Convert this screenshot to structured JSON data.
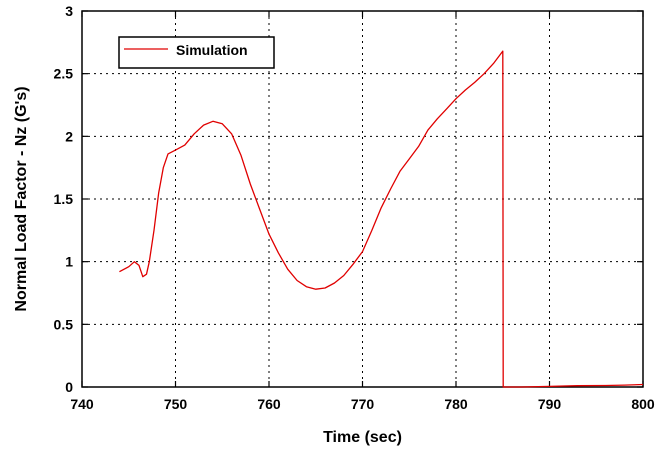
{
  "chart_data": {
    "type": "line",
    "xlabel": "Time (sec)",
    "ylabel": "Normal Load Factor - Nz (G's)",
    "xlim": [
      740,
      800
    ],
    "ylim": [
      0,
      3
    ],
    "xticks": [
      740,
      750,
      760,
      770,
      780,
      790,
      800
    ],
    "yticks": [
      0,
      0.5,
      1,
      1.5,
      2,
      2.5,
      3
    ],
    "xtick_labels": [
      "740",
      "750",
      "760",
      "770",
      "780",
      "790",
      "800"
    ],
    "ytick_labels": [
      "0",
      "0.5",
      "1",
      "1.5",
      "2",
      "2.5",
      "3"
    ],
    "grid": true,
    "legend": {
      "position": "top-left"
    },
    "series": [
      {
        "name": "Simulation",
        "color": "#e00000",
        "points": [
          [
            744.0,
            0.92
          ],
          [
            745.0,
            0.96
          ],
          [
            745.6,
            1.0
          ],
          [
            746.1,
            0.97
          ],
          [
            746.5,
            0.88
          ],
          [
            746.9,
            0.9
          ],
          [
            747.2,
            1.0
          ],
          [
            747.7,
            1.25
          ],
          [
            748.2,
            1.55
          ],
          [
            748.7,
            1.75
          ],
          [
            749.2,
            1.86
          ],
          [
            750.0,
            1.89
          ],
          [
            751.0,
            1.93
          ],
          [
            752.0,
            2.02
          ],
          [
            753.0,
            2.09
          ],
          [
            754.0,
            2.12
          ],
          [
            755.0,
            2.1
          ],
          [
            756.0,
            2.02
          ],
          [
            757.0,
            1.85
          ],
          [
            758.0,
            1.62
          ],
          [
            759.0,
            1.42
          ],
          [
            760.0,
            1.22
          ],
          [
            761.0,
            1.07
          ],
          [
            762.0,
            0.94
          ],
          [
            763.0,
            0.85
          ],
          [
            764.0,
            0.8
          ],
          [
            765.0,
            0.78
          ],
          [
            766.0,
            0.79
          ],
          [
            767.0,
            0.83
          ],
          [
            768.0,
            0.89
          ],
          [
            769.0,
            0.98
          ],
          [
            770.0,
            1.08
          ],
          [
            771.0,
            1.25
          ],
          [
            772.0,
            1.43
          ],
          [
            773.0,
            1.58
          ],
          [
            774.0,
            1.72
          ],
          [
            775.0,
            1.82
          ],
          [
            776.0,
            1.92
          ],
          [
            777.0,
            2.05
          ],
          [
            778.0,
            2.14
          ],
          [
            779.0,
            2.22
          ],
          [
            780.0,
            2.3
          ],
          [
            781.0,
            2.37
          ],
          [
            782.0,
            2.43
          ],
          [
            783.0,
            2.5
          ],
          [
            784.0,
            2.58
          ],
          [
            785.0,
            2.68
          ],
          [
            785.05,
            0.0
          ],
          [
            787.0,
            0.0
          ],
          [
            790.0,
            0.005
          ],
          [
            793.0,
            0.01
          ],
          [
            796.0,
            0.012
          ],
          [
            798.0,
            0.015
          ],
          [
            800.0,
            0.02
          ]
        ]
      }
    ]
  }
}
